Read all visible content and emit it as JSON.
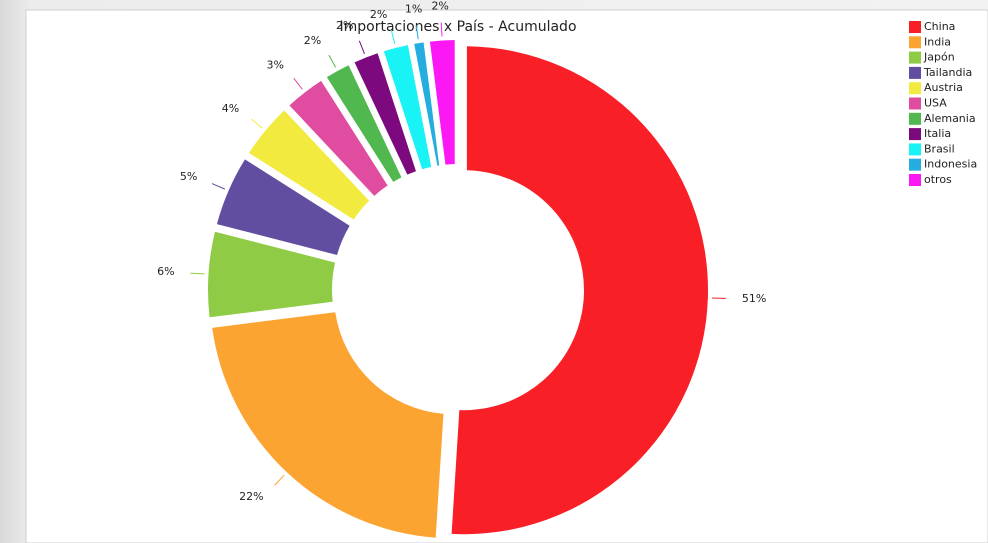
{
  "chart_data": {
    "type": "donut",
    "title": "Importaciones x País - Acumulado",
    "categories": [
      "China",
      "India",
      "Japón",
      "Tailandia",
      "Austria",
      "USA",
      "Alemania",
      "Italia",
      "Brasil",
      "Indonesia",
      "otros"
    ],
    "values": [
      51,
      22,
      6,
      5,
      4,
      3,
      2,
      2,
      2,
      1,
      2
    ],
    "value_labels": [
      "51%",
      "22%",
      "6%",
      "5%",
      "4%",
      "3%",
      "2%",
      "2%",
      "2%",
      "1%",
      "2%"
    ],
    "colors": [
      "#f81f27",
      "#fba431",
      "#8fcb45",
      "#624ea0",
      "#f2ea3e",
      "#df4ca0",
      "#51b74f",
      "#7c0a7e",
      "#1af3f5",
      "#26ade0",
      "#fc18f5"
    ],
    "legend": "top-right"
  }
}
